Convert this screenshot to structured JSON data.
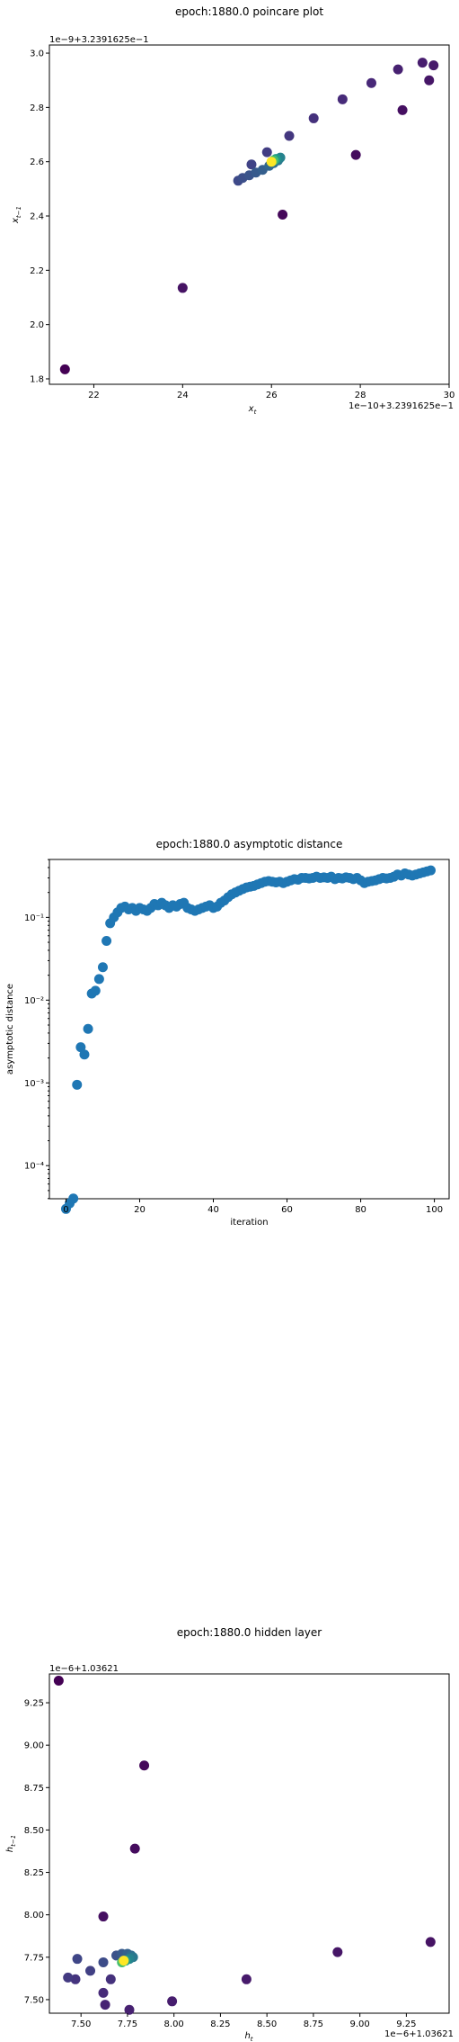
{
  "chart_data": [
    {
      "type": "scatter",
      "title": "epoch:1880.0 poincare plot",
      "xlabel": "x_t",
      "ylabel": "x_{t-1}",
      "x_offset_text": "1e−10+3.2391625e−1",
      "y_offset_text": "1e−9+3.2391625e−1",
      "xlim": [
        21.0,
        30.0
      ],
      "ylim": [
        1.78,
        3.03
      ],
      "xticks": [
        22,
        24,
        26,
        28,
        30
      ],
      "xtick_labels": [
        "22",
        "24",
        "26",
        "28",
        "30"
      ],
      "yticks": [
        1.8,
        2.0,
        2.2,
        2.4,
        2.6,
        2.8,
        3.0
      ],
      "ytick_labels": [
        "1.8",
        "2.0",
        "2.2",
        "2.4",
        "2.6",
        "2.8",
        "3.0"
      ],
      "colormap": "viridis",
      "points": [
        {
          "x": 21.35,
          "y": 1.835,
          "c": 0.0
        },
        {
          "x": 24.0,
          "y": 2.135,
          "c": 0.05
        },
        {
          "x": 26.25,
          "y": 2.405,
          "c": 0.02
        },
        {
          "x": 27.9,
          "y": 2.625,
          "c": 0.03
        },
        {
          "x": 28.95,
          "y": 2.79,
          "c": 0.04
        },
        {
          "x": 29.55,
          "y": 2.9,
          "c": 0.06
        },
        {
          "x": 29.65,
          "y": 2.955,
          "c": 0.07
        },
        {
          "x": 29.4,
          "y": 2.965,
          "c": 0.08
        },
        {
          "x": 28.85,
          "y": 2.94,
          "c": 0.09
        },
        {
          "x": 28.25,
          "y": 2.89,
          "c": 0.11
        },
        {
          "x": 27.6,
          "y": 2.83,
          "c": 0.12
        },
        {
          "x": 26.95,
          "y": 2.76,
          "c": 0.14
        },
        {
          "x": 26.4,
          "y": 2.695,
          "c": 0.16
        },
        {
          "x": 25.9,
          "y": 2.635,
          "c": 0.18
        },
        {
          "x": 25.55,
          "y": 2.59,
          "c": 0.2
        },
        {
          "x": 25.25,
          "y": 2.53,
          "c": 0.22
        },
        {
          "x": 25.35,
          "y": 2.54,
          "c": 0.24
        },
        {
          "x": 25.5,
          "y": 2.55,
          "c": 0.26
        },
        {
          "x": 25.65,
          "y": 2.56,
          "c": 0.28
        },
        {
          "x": 25.8,
          "y": 2.57,
          "c": 0.3
        },
        {
          "x": 25.95,
          "y": 2.585,
          "c": 0.33
        },
        {
          "x": 26.05,
          "y": 2.595,
          "c": 0.36
        },
        {
          "x": 26.15,
          "y": 2.605,
          "c": 0.4
        },
        {
          "x": 26.2,
          "y": 2.615,
          "c": 0.45
        },
        {
          "x": 26.1,
          "y": 2.61,
          "c": 0.55
        },
        {
          "x": 26.05,
          "y": 2.605,
          "c": 0.7
        },
        {
          "x": 26.0,
          "y": 2.6,
          "c": 1.0
        }
      ]
    },
    {
      "type": "scatter",
      "title": "epoch:1880.0 asymptotic distance",
      "xlabel": "iteration",
      "ylabel": "asymptotic distance",
      "yscale": "log",
      "xlim": [
        -4.5,
        104
      ],
      "ylim_log10": [
        -4.4,
        -0.3
      ],
      "xticks": [
        0,
        20,
        40,
        60,
        80,
        100
      ],
      "xtick_labels": [
        "0",
        "20",
        "40",
        "60",
        "80",
        "100"
      ],
      "yticks_log10": [
        -4,
        -3,
        -2,
        -1
      ],
      "ytick_labels": [
        "10⁻⁴",
        "10⁻³",
        "10⁻²",
        "10⁻¹"
      ],
      "color": "#1f77b4",
      "x": [
        0,
        1,
        2,
        3,
        4,
        5,
        6,
        7,
        8,
        9,
        10,
        11,
        12,
        13,
        14,
        15,
        16,
        17,
        18,
        19,
        20,
        21,
        22,
        23,
        24,
        25,
        26,
        27,
        28,
        29,
        30,
        31,
        32,
        33,
        34,
        35,
        36,
        37,
        38,
        39,
        40,
        41,
        42,
        43,
        44,
        45,
        46,
        47,
        48,
        49,
        50,
        51,
        52,
        53,
        54,
        55,
        56,
        57,
        58,
        59,
        60,
        61,
        62,
        63,
        64,
        65,
        66,
        67,
        68,
        69,
        70,
        71,
        72,
        73,
        74,
        75,
        76,
        77,
        78,
        79,
        80,
        81,
        82,
        83,
        84,
        85,
        86,
        87,
        88,
        89,
        90,
        91,
        92,
        93,
        94,
        95,
        96,
        97,
        98,
        99
      ],
      "y": [
        3e-05,
        3.5e-05,
        4e-05,
        0.00095,
        0.0027,
        0.0022,
        0.0045,
        0.012,
        0.013,
        0.018,
        0.025,
        0.052,
        0.085,
        0.1,
        0.115,
        0.13,
        0.135,
        0.125,
        0.13,
        0.12,
        0.13,
        0.125,
        0.12,
        0.13,
        0.145,
        0.14,
        0.15,
        0.14,
        0.13,
        0.14,
        0.135,
        0.145,
        0.15,
        0.13,
        0.125,
        0.12,
        0.125,
        0.13,
        0.135,
        0.14,
        0.13,
        0.135,
        0.15,
        0.16,
        0.175,
        0.19,
        0.2,
        0.21,
        0.22,
        0.23,
        0.235,
        0.24,
        0.25,
        0.26,
        0.27,
        0.275,
        0.27,
        0.265,
        0.27,
        0.26,
        0.27,
        0.28,
        0.29,
        0.285,
        0.3,
        0.3,
        0.295,
        0.3,
        0.31,
        0.3,
        0.305,
        0.3,
        0.31,
        0.29,
        0.3,
        0.295,
        0.305,
        0.3,
        0.29,
        0.3,
        0.28,
        0.26,
        0.27,
        0.275,
        0.28,
        0.29,
        0.3,
        0.295,
        0.3,
        0.31,
        0.33,
        0.32,
        0.34,
        0.33,
        0.32,
        0.33,
        0.34,
        0.35,
        0.36,
        0.37
      ]
    },
    {
      "type": "scatter",
      "title": "epoch:1880.0 hidden layer",
      "xlabel": "h_t",
      "ylabel": "h_{t-1}",
      "x_offset_text": "1e−6+1.03621",
      "y_offset_text": "1e−6+1.03621",
      "xlim": [
        7.33,
        9.48
      ],
      "ylim": [
        7.42,
        9.42
      ],
      "xticks": [
        7.5,
        7.75,
        8.0,
        8.25,
        8.5,
        8.75,
        9.0,
        9.25
      ],
      "xtick_labels": [
        "7.50",
        "7.75",
        "8.00",
        "8.25",
        "8.50",
        "8.75",
        "9.00",
        "9.25"
      ],
      "yticks": [
        7.5,
        7.75,
        8.0,
        8.25,
        8.5,
        8.75,
        9.0,
        9.25
      ],
      "ytick_labels": [
        "7.50",
        "7.75",
        "8.00",
        "8.25",
        "8.50",
        "8.75",
        "9.00",
        "9.25"
      ],
      "colormap": "viridis",
      "points": [
        {
          "x": 7.38,
          "y": 9.38,
          "c": 0.0
        },
        {
          "x": 7.84,
          "y": 8.88,
          "c": 0.02
        },
        {
          "x": 7.79,
          "y": 8.39,
          "c": 0.03
        },
        {
          "x": 7.62,
          "y": 7.99,
          "c": 0.04
        },
        {
          "x": 9.38,
          "y": 7.84,
          "c": 0.05
        },
        {
          "x": 8.88,
          "y": 7.78,
          "c": 0.06
        },
        {
          "x": 8.39,
          "y": 7.62,
          "c": 0.07
        },
        {
          "x": 7.99,
          "y": 7.49,
          "c": 0.08
        },
        {
          "x": 7.76,
          "y": 7.44,
          "c": 0.09
        },
        {
          "x": 7.63,
          "y": 7.47,
          "c": 0.1
        },
        {
          "x": 7.62,
          "y": 7.54,
          "c": 0.12
        },
        {
          "x": 7.66,
          "y": 7.62,
          "c": 0.14
        },
        {
          "x": 7.47,
          "y": 7.62,
          "c": 0.15
        },
        {
          "x": 7.43,
          "y": 7.63,
          "c": 0.17
        },
        {
          "x": 7.55,
          "y": 7.67,
          "c": 0.19
        },
        {
          "x": 7.48,
          "y": 7.74,
          "c": 0.21
        },
        {
          "x": 7.62,
          "y": 7.72,
          "c": 0.23
        },
        {
          "x": 7.69,
          "y": 7.76,
          "c": 0.25
        },
        {
          "x": 7.72,
          "y": 7.77,
          "c": 0.28
        },
        {
          "x": 7.75,
          "y": 7.77,
          "c": 0.31
        },
        {
          "x": 7.77,
          "y": 7.76,
          "c": 0.35
        },
        {
          "x": 7.78,
          "y": 7.75,
          "c": 0.4
        },
        {
          "x": 7.76,
          "y": 7.74,
          "c": 0.45
        },
        {
          "x": 7.74,
          "y": 7.73,
          "c": 0.55
        },
        {
          "x": 7.72,
          "y": 7.72,
          "c": 0.7
        },
        {
          "x": 7.73,
          "y": 7.73,
          "c": 1.0
        }
      ]
    }
  ]
}
